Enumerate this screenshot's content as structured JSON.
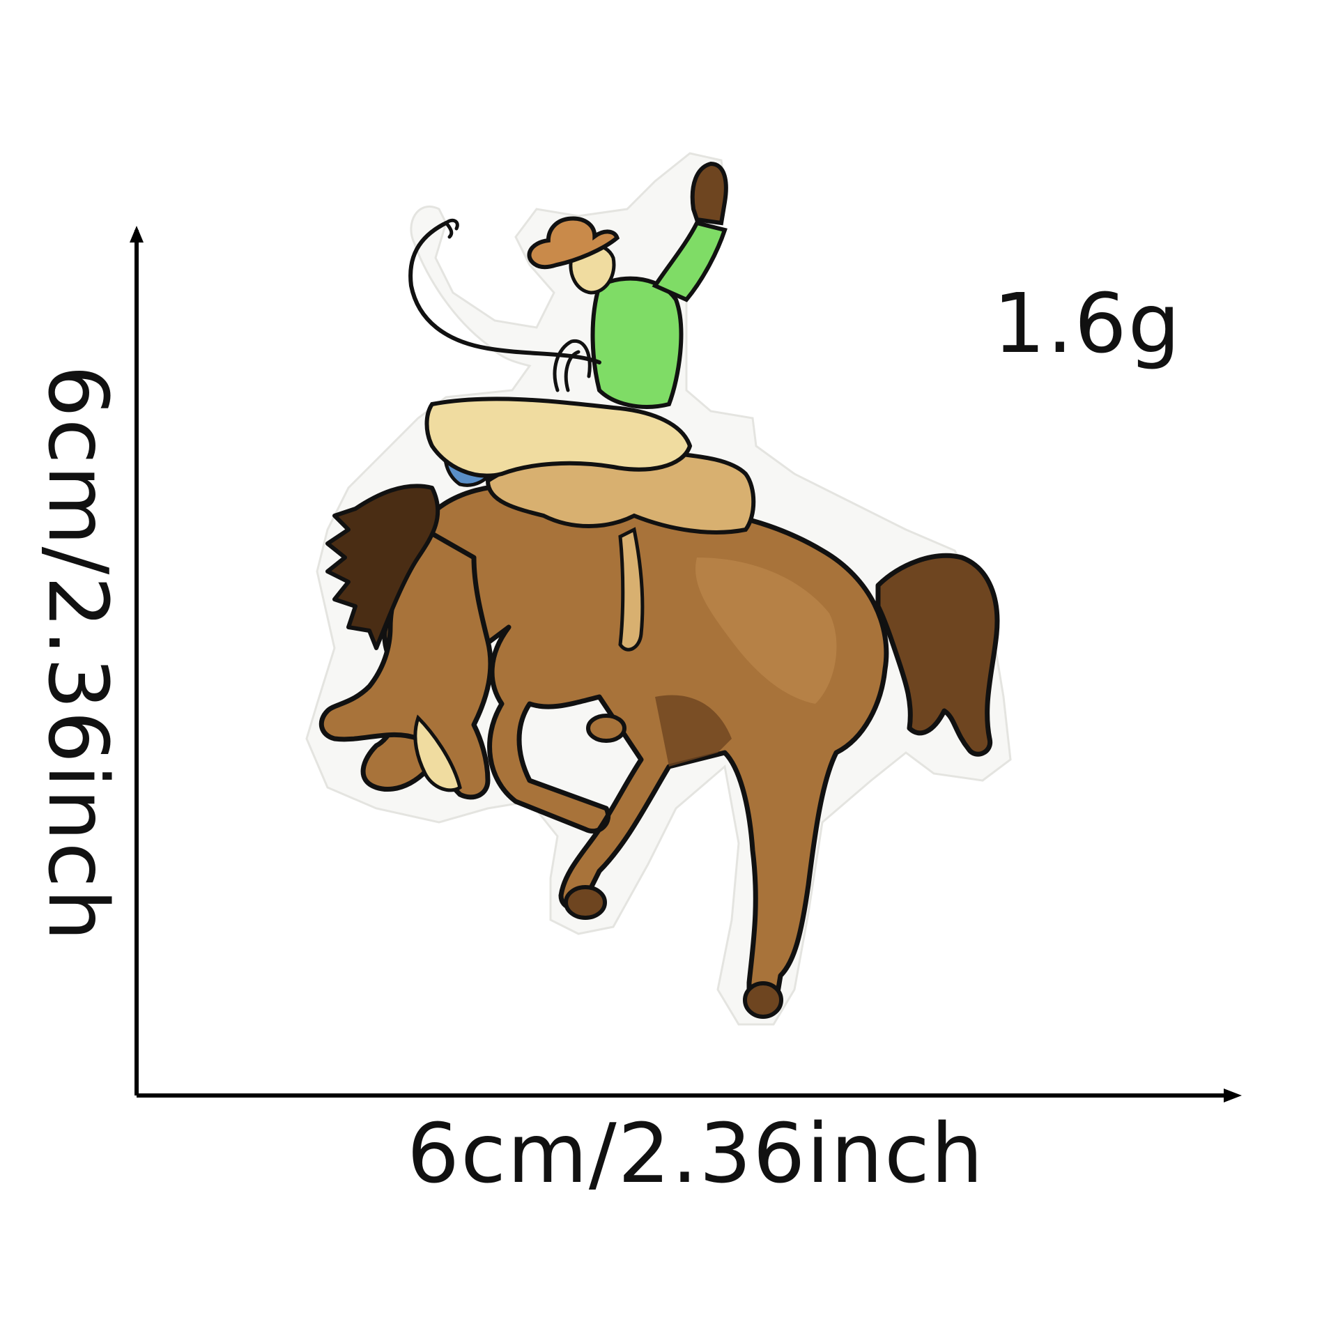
{
  "product": {
    "weight": "1.6g",
    "width_label": "6cm/2.36inch",
    "height_label": "6cm/2.36inch"
  },
  "illustration": {
    "subject_icon": "bucking-horse-cowboy-patch-icon",
    "colors": {
      "outline": "#111111",
      "backing": "#f7f7f5",
      "horse": "#a8733a",
      "horse_dark": "#6e4520",
      "mane": "#4a2d14",
      "cowboy_shirt": "#7fdc66",
      "hat": "#c98a4a",
      "skin": "#f0dca0",
      "saddle": "#d8b070",
      "jeans": "#5a8fc8",
      "hoof": "#f0d8a0"
    }
  }
}
